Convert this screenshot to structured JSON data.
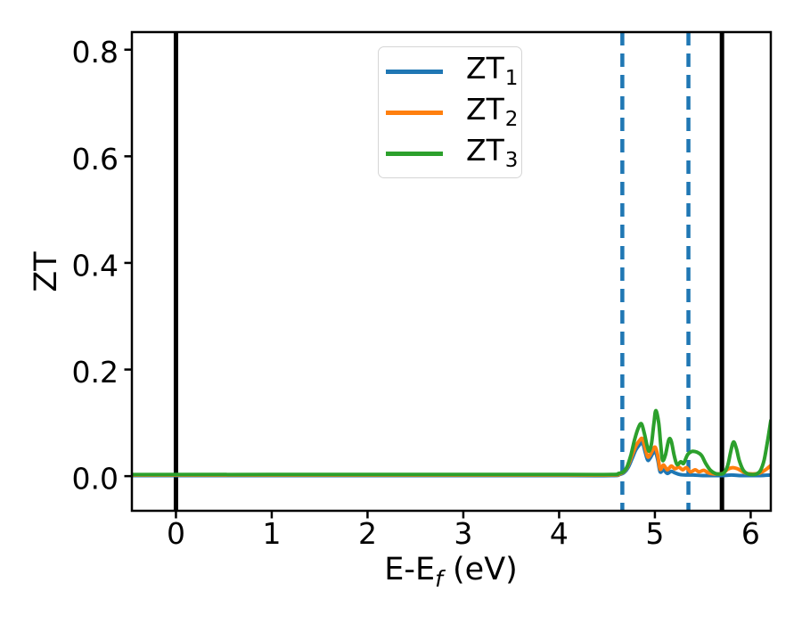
{
  "chart_data": {
    "type": "line",
    "title": "",
    "xlabel": {
      "prefix": "E-E",
      "subscript": "f",
      "suffix": " (eV)"
    },
    "ylabel": "ZT",
    "xlim": [
      -0.46,
      6.21
    ],
    "ylim": [
      -0.065,
      0.833
    ],
    "xticks": {
      "values": [
        0,
        1,
        2,
        3,
        4,
        5,
        6
      ],
      "labels": [
        "0",
        "1",
        "2",
        "3",
        "4",
        "5",
        "6"
      ]
    },
    "yticks": {
      "values": [
        0.0,
        0.2,
        0.4,
        0.6,
        0.8
      ],
      "labels": [
        "0.0",
        "0.2",
        "0.4",
        "0.6",
        "0.8"
      ]
    },
    "grid": false,
    "axis_color": "#000000",
    "legend": {
      "position": "upper center",
      "border_color": "#d5d5d5",
      "background": "#ffffff"
    },
    "series": [
      {
        "name": "ZT",
        "subscript": "1",
        "color": "#1f77b4",
        "line_width": 4,
        "style": "solid",
        "points": [
          [
            -0.46,
            0.001
          ],
          [
            2.0,
            0.001
          ],
          [
            4.0,
            0.001
          ],
          [
            4.55,
            0.001
          ],
          [
            4.63,
            0.003
          ],
          [
            4.68,
            0.007
          ],
          [
            4.72,
            0.016
          ],
          [
            4.76,
            0.032
          ],
          [
            4.8,
            0.049
          ],
          [
            4.84,
            0.059
          ],
          [
            4.87,
            0.063
          ],
          [
            4.9,
            0.044
          ],
          [
            4.925,
            0.03
          ],
          [
            4.95,
            0.034
          ],
          [
            4.98,
            0.043
          ],
          [
            5.005,
            0.046
          ],
          [
            5.03,
            0.03
          ],
          [
            5.055,
            0.008
          ],
          [
            5.09,
            0.012
          ],
          [
            5.13,
            0.005
          ],
          [
            5.17,
            0.009
          ],
          [
            5.21,
            0.006
          ],
          [
            5.26,
            0.003
          ],
          [
            5.32,
            0.002
          ],
          [
            5.4,
            0.002
          ],
          [
            5.5,
            0.001
          ],
          [
            5.6,
            0.001
          ],
          [
            5.7,
            0.001
          ],
          [
            5.8,
            0.002
          ],
          [
            5.9,
            0.001
          ],
          [
            6.0,
            0.001
          ],
          [
            6.1,
            0.001
          ],
          [
            6.21,
            0.002
          ]
        ]
      },
      {
        "name": "ZT",
        "subscript": "2",
        "color": "#ff7f0e",
        "line_width": 4,
        "style": "solid",
        "points": [
          [
            -0.46,
            0.002
          ],
          [
            2.0,
            0.002
          ],
          [
            4.0,
            0.002
          ],
          [
            4.55,
            0.002
          ],
          [
            4.63,
            0.004
          ],
          [
            4.68,
            0.009
          ],
          [
            4.72,
            0.02
          ],
          [
            4.76,
            0.038
          ],
          [
            4.8,
            0.056
          ],
          [
            4.84,
            0.067
          ],
          [
            4.87,
            0.07
          ],
          [
            4.9,
            0.051
          ],
          [
            4.925,
            0.036
          ],
          [
            4.95,
            0.04
          ],
          [
            4.98,
            0.05
          ],
          [
            5.005,
            0.054
          ],
          [
            5.03,
            0.038
          ],
          [
            5.055,
            0.013
          ],
          [
            5.09,
            0.021
          ],
          [
            5.13,
            0.012
          ],
          [
            5.17,
            0.019
          ],
          [
            5.21,
            0.014
          ],
          [
            5.25,
            0.017
          ],
          [
            5.29,
            0.012
          ],
          [
            5.33,
            0.016
          ],
          [
            5.37,
            0.008
          ],
          [
            5.42,
            0.012
          ],
          [
            5.46,
            0.008
          ],
          [
            5.51,
            0.011
          ],
          [
            5.56,
            0.006
          ],
          [
            5.62,
            0.004
          ],
          [
            5.66,
            0.004
          ],
          [
            5.71,
            0.005
          ],
          [
            5.76,
            0.013
          ],
          [
            5.81,
            0.016
          ],
          [
            5.86,
            0.014
          ],
          [
            5.91,
            0.009
          ],
          [
            5.96,
            0.005
          ],
          [
            6.02,
            0.004
          ],
          [
            6.08,
            0.005
          ],
          [
            6.13,
            0.009
          ],
          [
            6.17,
            0.014
          ],
          [
            6.21,
            0.02
          ]
        ]
      },
      {
        "name": "ZT",
        "subscript": "3",
        "color": "#2ca02c",
        "line_width": 4,
        "style": "solid",
        "points": [
          [
            -0.46,
            0.003
          ],
          [
            2.0,
            0.003
          ],
          [
            4.0,
            0.003
          ],
          [
            4.55,
            0.003
          ],
          [
            4.62,
            0.005
          ],
          [
            4.67,
            0.008
          ],
          [
            4.71,
            0.018
          ],
          [
            4.75,
            0.04
          ],
          [
            4.79,
            0.07
          ],
          [
            4.83,
            0.092
          ],
          [
            4.86,
            0.098
          ],
          [
            4.89,
            0.08
          ],
          [
            4.92,
            0.056
          ],
          [
            4.94,
            0.047
          ],
          [
            4.965,
            0.062
          ],
          [
            4.99,
            0.1
          ],
          [
            5.01,
            0.123
          ],
          [
            5.04,
            0.1
          ],
          [
            5.06,
            0.06
          ],
          [
            5.08,
            0.03
          ],
          [
            5.11,
            0.04
          ],
          [
            5.145,
            0.068
          ],
          [
            5.17,
            0.066
          ],
          [
            5.2,
            0.04
          ],
          [
            5.23,
            0.022
          ],
          [
            5.27,
            0.027
          ],
          [
            5.3,
            0.024
          ],
          [
            5.34,
            0.04
          ],
          [
            5.38,
            0.046
          ],
          [
            5.42,
            0.046
          ],
          [
            5.46,
            0.043
          ],
          [
            5.49,
            0.038
          ],
          [
            5.53,
            0.024
          ],
          [
            5.58,
            0.011
          ],
          [
            5.63,
            0.005
          ],
          [
            5.68,
            0.004
          ],
          [
            5.72,
            0.006
          ],
          [
            5.76,
            0.02
          ],
          [
            5.79,
            0.045
          ],
          [
            5.82,
            0.064
          ],
          [
            5.85,
            0.052
          ],
          [
            5.88,
            0.03
          ],
          [
            5.92,
            0.012
          ],
          [
            5.96,
            0.005
          ],
          [
            6.01,
            0.003
          ],
          [
            6.06,
            0.004
          ],
          [
            6.1,
            0.01
          ],
          [
            6.14,
            0.03
          ],
          [
            6.18,
            0.07
          ],
          [
            6.21,
            0.104
          ]
        ]
      }
    ],
    "vlines": [
      {
        "x": 0.0,
        "color": "#000000",
        "style": "solid",
        "width": 5
      },
      {
        "x": 5.7,
        "color": "#000000",
        "style": "solid",
        "width": 5
      },
      {
        "x": 4.66,
        "color": "#1f77b4",
        "style": "dashed",
        "width": 4.5
      },
      {
        "x": 5.35,
        "color": "#1f77b4",
        "style": "dashed",
        "width": 4.5
      }
    ]
  }
}
